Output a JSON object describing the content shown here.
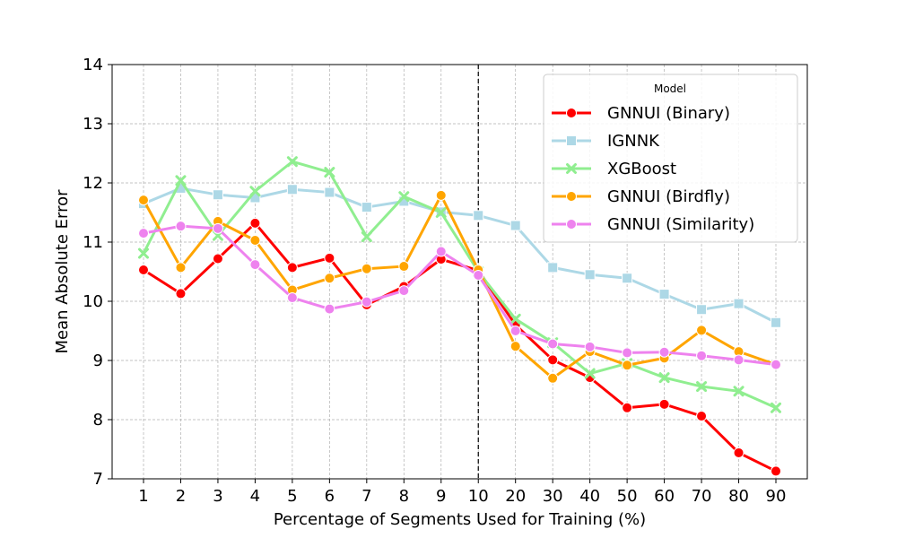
{
  "chart_data": {
    "type": "line",
    "title": "",
    "xlabel": "Percentage of Segments Used for Training (%)",
    "ylabel": "Mean Absolute Error",
    "categories": [
      "1",
      "2",
      "3",
      "4",
      "5",
      "6",
      "7",
      "8",
      "9",
      "10",
      "20",
      "30",
      "40",
      "50",
      "60",
      "70",
      "80",
      "90"
    ],
    "ylim": [
      7,
      14
    ],
    "yticks": [
      "7",
      "8",
      "9",
      "10",
      "11",
      "12",
      "13",
      "14"
    ],
    "grid": true,
    "vline_category": "10",
    "legend": {
      "title": "Model",
      "position": "top-right"
    },
    "series": [
      {
        "name": "GNNUI (Binary)",
        "color": "#ff0000",
        "marker": "circle",
        "values": [
          10.53,
          10.13,
          10.72,
          11.32,
          10.57,
          10.73,
          9.94,
          10.25,
          10.71,
          10.52,
          9.6,
          9.01,
          8.71,
          8.2,
          8.26,
          8.06,
          7.44,
          7.13
        ]
      },
      {
        "name": "IGNNK",
        "color": "#add8e6",
        "marker": "square",
        "values": [
          11.65,
          11.91,
          11.8,
          11.75,
          11.89,
          11.84,
          11.59,
          11.69,
          11.51,
          11.45,
          11.28,
          10.57,
          10.45,
          10.39,
          10.12,
          9.86,
          9.96,
          9.64
        ]
      },
      {
        "name": "XGBoost",
        "color": "#90ee90",
        "marker": "x",
        "values": [
          10.81,
          12.04,
          11.11,
          11.86,
          12.36,
          12.18,
          11.09,
          11.77,
          11.5,
          10.5,
          9.7,
          9.3,
          8.78,
          8.95,
          8.71,
          8.56,
          8.48,
          8.2
        ]
      },
      {
        "name": "GNNUI (Birdfly)",
        "color": "#ffa500",
        "marker": "circle",
        "values": [
          11.71,
          10.57,
          11.35,
          11.03,
          10.19,
          10.39,
          10.55,
          10.59,
          11.79,
          10.53,
          9.24,
          8.7,
          9.15,
          8.92,
          9.04,
          9.51,
          9.15,
          8.93
        ]
      },
      {
        "name": "GNNUI (Similarity)",
        "color": "#ee82ee",
        "marker": "circle",
        "values": [
          11.15,
          11.27,
          11.23,
          10.62,
          10.06,
          9.87,
          9.99,
          10.18,
          10.84,
          10.44,
          9.5,
          9.28,
          9.23,
          9.13,
          9.14,
          9.08,
          9.01,
          8.93
        ]
      }
    ]
  }
}
